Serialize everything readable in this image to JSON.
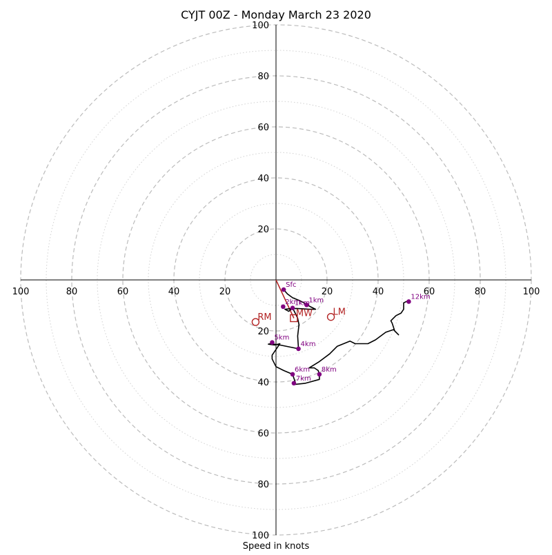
{
  "chart_data": {
    "type": "line",
    "title": "CYJT 00Z - Monday March 23 2020",
    "xlabel": "Speed in knots",
    "units": "knots",
    "max_speed": 100,
    "ring_major_step": 20,
    "ring_minor_step": 10,
    "tick_values": [
      20,
      40,
      60,
      80,
      100
    ],
    "tick_labels": [
      "20",
      "40",
      "60",
      "80",
      "100"
    ],
    "grid": true,
    "colors": {
      "hodograph": "#000000",
      "height_markers": "#800080",
      "motion": "#b22222",
      "major_rings": "#bbbbbb",
      "minor_rings": "#d0d0d0"
    },
    "hodograph_line": [
      [
        3.0,
        -3.8
      ],
      [
        4.5,
        -5.5
      ],
      [
        6.5,
        -7.0
      ],
      [
        9.0,
        -8.0
      ],
      [
        11.0,
        -9.0
      ],
      [
        13.5,
        -10.5
      ],
      [
        15.5,
        -11.5
      ],
      [
        13.0,
        -11.5
      ],
      [
        10.0,
        -11.3
      ],
      [
        8.0,
        -11.2
      ],
      [
        5.5,
        -11.3
      ],
      [
        3.5,
        -11.5
      ],
      [
        5.0,
        -12.3
      ],
      [
        6.5,
        -11.0
      ],
      [
        7.0,
        -12.0
      ],
      [
        7.5,
        -13.0
      ],
      [
        8.5,
        -15.0
      ],
      [
        9.0,
        -17.5
      ],
      [
        8.5,
        -22.0
      ],
      [
        8.8,
        -27.0
      ],
      [
        1.5,
        -25.5
      ],
      [
        -2.0,
        -25.0
      ],
      [
        -3.0,
        -25.2
      ],
      [
        -0.5,
        -25.5
      ],
      [
        1.5,
        -25.0
      ],
      [
        0.5,
        -26.5
      ],
      [
        -1.5,
        -29.5
      ],
      [
        -1.5,
        -31.0
      ],
      [
        0.0,
        -34.0
      ],
      [
        3.0,
        -35.5
      ],
      [
        6.5,
        -37.0
      ],
      [
        7.0,
        -38.5
      ],
      [
        7.5,
        -40.0
      ],
      [
        7.0,
        -41.0
      ],
      [
        11.5,
        -40.5
      ],
      [
        17.0,
        -39.0
      ],
      [
        17.0,
        -37.0
      ],
      [
        16.5,
        -35.5
      ],
      [
        15.0,
        -34.5
      ],
      [
        13.0,
        -34.5
      ],
      [
        17.0,
        -32.0
      ],
      [
        21.0,
        -29.0
      ],
      [
        24.0,
        -26.0
      ],
      [
        29.0,
        -24.0
      ],
      [
        31.0,
        -25.0
      ],
      [
        36.0,
        -25.0
      ],
      [
        39.0,
        -23.5
      ],
      [
        43.0,
        -20.5
      ],
      [
        46.0,
        -19.5
      ],
      [
        48.0,
        -21.5
      ],
      [
        46.5,
        -20.0
      ],
      [
        45.5,
        -17.0
      ],
      [
        45.0,
        -16.0
      ],
      [
        47.0,
        -14.0
      ],
      [
        49.0,
        -13.0
      ],
      [
        50.0,
        -11.5
      ],
      [
        50.0,
        -9.0
      ],
      [
        51.0,
        -8.5
      ],
      [
        52.0,
        -8.5
      ]
    ],
    "markers": [
      {
        "label": "Sfc",
        "u": 3.0,
        "v": -3.8
      },
      {
        "label": "1km",
        "u": 12.0,
        "v": -9.8
      },
      {
        "label": "1km",
        "u": 6.5,
        "v": -11.0
      },
      {
        "label": "2km",
        "u": 2.8,
        "v": -10.5
      },
      {
        "label": "4km",
        "u": 8.8,
        "v": -27.0
      },
      {
        "label": "5km",
        "u": -1.5,
        "v": -24.5
      },
      {
        "label": "6km",
        "u": 6.5,
        "v": -37.0
      },
      {
        "label": "7km",
        "u": 7.0,
        "v": -40.5
      },
      {
        "label": "8km",
        "u": 17.0,
        "v": -37.0
      },
      {
        "label": "12km",
        "u": 52.0,
        "v": -8.5
      }
    ],
    "motion_points": [
      {
        "label": "RM",
        "u": -8.0,
        "v": -16.5,
        "shape": "circle"
      },
      {
        "label": "LM",
        "u": 21.5,
        "v": -14.5,
        "shape": "circle"
      },
      {
        "label": "MW",
        "u": 7.0,
        "v": -15.0,
        "shape": "square"
      }
    ],
    "motion_vector": {
      "from": [
        0.0,
        0.0
      ],
      "to": [
        7.0,
        -15.0
      ]
    }
  }
}
